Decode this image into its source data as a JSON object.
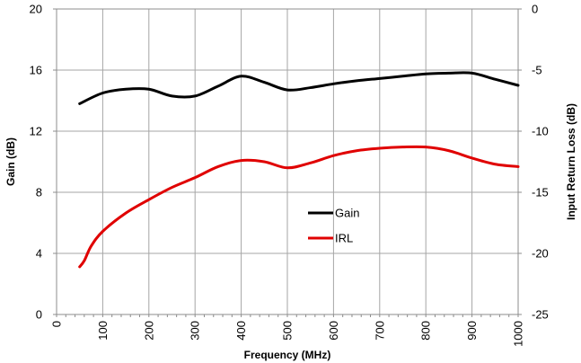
{
  "chart_data": {
    "type": "line",
    "title": "",
    "xlabel": "Frequency (MHz)",
    "ylabel_left": "Gain (dB)",
    "ylabel_right": "Input Return Loss (dB)",
    "xlim": [
      0,
      1000
    ],
    "ylim_left": [
      0,
      20
    ],
    "ylim_right": [
      -25,
      0
    ],
    "x_ticks": [
      "0",
      "100",
      "200",
      "300",
      "400",
      "500",
      "600",
      "700",
      "800",
      "900",
      "1000"
    ],
    "y_left_ticks": [
      "0",
      "4",
      "8",
      "12",
      "16",
      "20"
    ],
    "y_right_ticks": [
      "-25",
      "-20",
      "-15",
      "-10",
      "-5",
      "0"
    ],
    "grid": true,
    "legend_placement": "center-right",
    "series": [
      {
        "name": "Gain",
        "axis": "left",
        "color": "#000000",
        "x": [
          50,
          100,
          150,
          200,
          250,
          300,
          350,
          400,
          450,
          500,
          550,
          600,
          650,
          700,
          750,
          800,
          850,
          900,
          950,
          1000
        ],
        "y": [
          13.8,
          14.5,
          14.75,
          14.75,
          14.3,
          14.3,
          14.95,
          15.6,
          15.2,
          14.7,
          14.85,
          15.1,
          15.3,
          15.45,
          15.6,
          15.75,
          15.8,
          15.8,
          15.4,
          15.0
        ]
      },
      {
        "name": "IRL",
        "axis": "right",
        "color": "#e00000",
        "x": [
          50,
          60,
          75,
          100,
          150,
          200,
          250,
          300,
          350,
          400,
          450,
          500,
          550,
          600,
          650,
          700,
          750,
          800,
          850,
          900,
          950,
          1000
        ],
        "y": [
          -21.1,
          -20.6,
          -19.4,
          -18.2,
          -16.7,
          -15.6,
          -14.6,
          -13.8,
          -12.9,
          -12.4,
          -12.5,
          -13.0,
          -12.6,
          -12.0,
          -11.6,
          -11.4,
          -11.3,
          -11.3,
          -11.6,
          -12.2,
          -12.7,
          -12.9
        ]
      }
    ]
  }
}
